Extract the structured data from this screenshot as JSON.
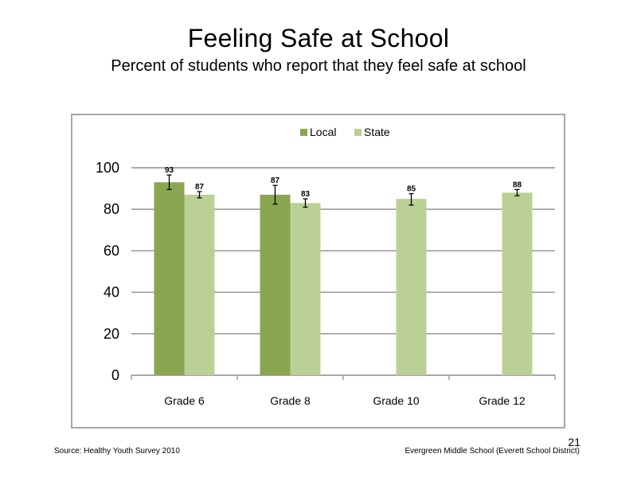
{
  "slide": {
    "title": "Feeling  Safe at School",
    "subtitle": "Percent of students  who report that they feel safe at school",
    "page_number": "21",
    "source": "Source: Healthy Youth Survey 2010",
    "footer": "Evergreen Middle  School (Everett School District)"
  },
  "chart_data": {
    "type": "bar",
    "categories": [
      "Grade 6",
      "Grade 8",
      "Grade 10",
      "Grade 12"
    ],
    "series": [
      {
        "name": "Local",
        "color": "#8aa650",
        "values": [
          93,
          87,
          null,
          null
        ],
        "labels": [
          "93",
          "87",
          "",
          ""
        ],
        "error_low": [
          89.5,
          82.5,
          null,
          null
        ],
        "error_high": [
          96.5,
          91.5,
          null,
          null
        ]
      },
      {
        "name": "State",
        "color": "#bad095",
        "values": [
          87,
          83,
          85,
          88
        ],
        "labels": [
          "87",
          "83",
          "85",
          "88"
        ],
        "error_low": [
          85.5,
          81,
          82,
          86.5
        ],
        "error_high": [
          88.5,
          85,
          87.5,
          89.5
        ]
      }
    ],
    "y_ticks": [
      "0",
      "20",
      "40",
      "60",
      "80",
      "100"
    ],
    "ylim": [
      0,
      100
    ],
    "grid": true,
    "legend_position": "top"
  }
}
